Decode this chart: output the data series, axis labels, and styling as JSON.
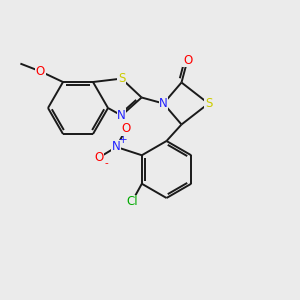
{
  "background_color": "#ebebeb",
  "fig_size": [
    3.0,
    3.0
  ],
  "dpi": 100,
  "colors": {
    "C": "#1a1a1a",
    "N": "#2020ff",
    "O": "#ff0000",
    "S": "#cccc00",
    "Cl": "#00aa00",
    "bond": "#1a1a1a"
  },
  "bond_lw": 1.4,
  "font_size": 8.5
}
